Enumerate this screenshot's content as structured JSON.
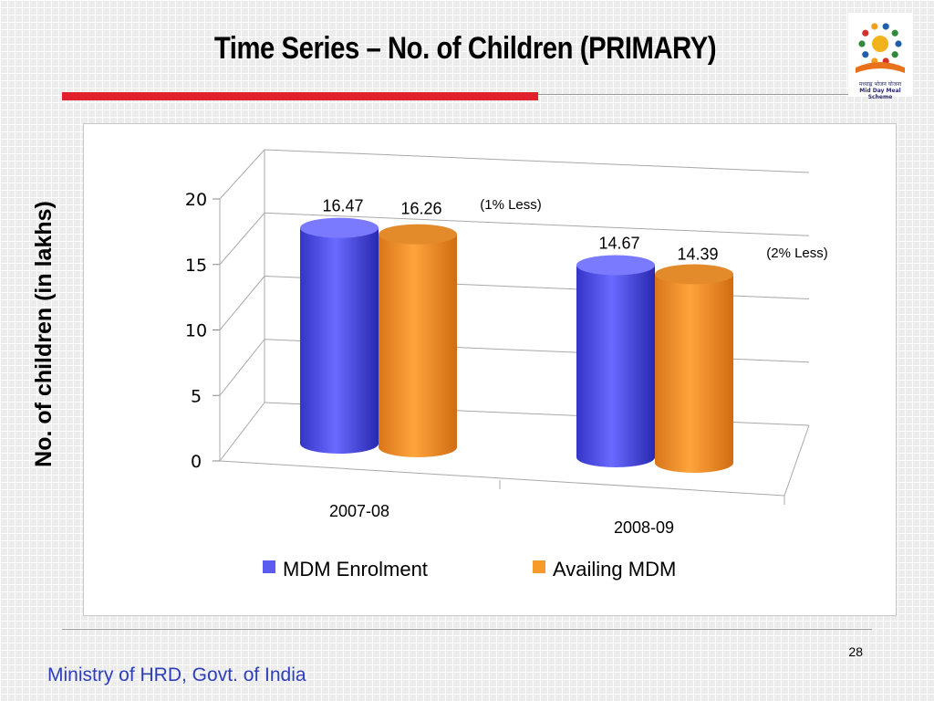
{
  "slide": {
    "title": "Time Series – No. of Children (PRIMARY)",
    "page_number": "28",
    "footer": "Ministry of HRD, Govt. of India"
  },
  "logo": {
    "caption_hindi": "मध्याह्न भोजन योजना",
    "caption_english": "Mid Day Meal Scheme"
  },
  "colors": {
    "title_rule": "#e0202a",
    "footer_text": "#2e3db8",
    "series_enrolment": "#5b5bf0",
    "series_availing": "#f79a2c"
  },
  "chart_data": {
    "type": "bar",
    "title": "",
    "ylabel": "No. of children (in lakhs)",
    "xlabel": "",
    "ylim": [
      0,
      20
    ],
    "yticks": [
      0,
      5,
      10,
      15,
      20
    ],
    "grid": true,
    "legend": "bottom",
    "style": "3d-cylinder",
    "categories": [
      "2007-08",
      "2008-09"
    ],
    "series": [
      {
        "name": "MDM Enrolment",
        "values": [
          16.47,
          14.67
        ]
      },
      {
        "name": "Availing MDM",
        "values": [
          16.26,
          14.39
        ]
      }
    ],
    "annotations": [
      "(1% Less)",
      "(2% Less)"
    ]
  }
}
